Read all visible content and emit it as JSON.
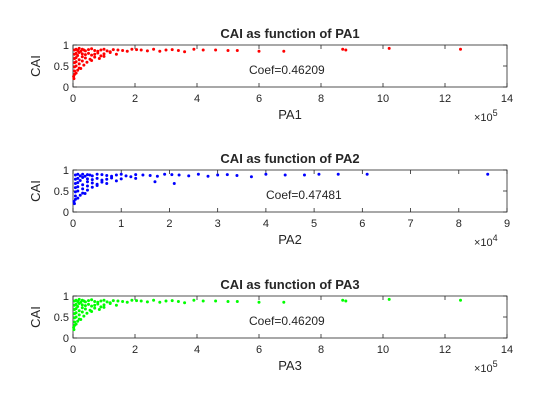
{
  "chart_data": [
    {
      "type": "scatter",
      "title": "CAI as function of PA1",
      "xlabel": "PA1",
      "ylabel": "CAI",
      "xlim": [
        0,
        14
      ],
      "ylim": [
        0,
        1
      ],
      "x_ticks": [
        "0",
        "2",
        "4",
        "6",
        "8",
        "10",
        "12",
        "14"
      ],
      "y_ticks": [
        "0",
        "0.5",
        "1"
      ],
      "x_multiplier_base": "×10",
      "x_multiplier_exp": "5",
      "annotation": "Coef=0.46209",
      "color": "#ff0000",
      "series": [
        {
          "x": [
            0.05,
            0.1,
            0.15,
            0.2,
            0.25,
            0.3,
            0.35,
            0.4,
            0.5,
            0.6,
            0.7,
            0.8,
            0.9,
            1.0,
            1.1,
            1.2,
            1.3,
            1.45,
            1.6,
            1.75,
            1.9,
            2.05,
            2.2,
            2.4,
            2.6,
            2.8,
            3.0,
            3.2,
            3.4,
            3.6,
            3.9,
            4.2,
            4.6,
            5.0,
            5.3,
            6.0,
            6.8,
            8.7,
            8.8,
            10.2,
            12.5,
            0.05,
            0.1,
            0.15,
            0.2,
            0.3,
            0.4,
            0.5,
            0.6,
            0.7,
            0.8,
            0.9,
            1.0,
            1.2,
            1.4,
            0.05,
            0.1,
            0.2,
            0.3,
            0.4,
            0.55,
            0.7,
            0.85,
            1.0,
            0.05,
            0.1,
            0.2,
            0.3,
            0.45,
            0.6,
            0.05,
            0.1,
            0.2,
            0.35,
            0.05,
            0.15,
            0.25,
            0.05,
            0.1,
            0.02,
            0.03
          ],
          "y": [
            0.88,
            0.9,
            0.87,
            0.92,
            0.85,
            0.9,
            0.88,
            0.86,
            0.89,
            0.91,
            0.87,
            0.85,
            0.88,
            0.9,
            0.86,
            0.84,
            0.89,
            0.88,
            0.87,
            0.85,
            0.9,
            0.89,
            0.88,
            0.86,
            0.9,
            0.85,
            0.88,
            0.89,
            0.87,
            0.84,
            0.9,
            0.88,
            0.88,
            0.87,
            0.87,
            0.85,
            0.85,
            0.9,
            0.88,
            0.92,
            0.9,
            0.78,
            0.8,
            0.75,
            0.82,
            0.79,
            0.77,
            0.8,
            0.76,
            0.78,
            0.81,
            0.74,
            0.79,
            0.82,
            0.78,
            0.68,
            0.7,
            0.65,
            0.72,
            0.69,
            0.66,
            0.71,
            0.68,
            0.73,
            0.58,
            0.6,
            0.55,
            0.62,
            0.59,
            0.63,
            0.48,
            0.5,
            0.45,
            0.52,
            0.38,
            0.4,
            0.44,
            0.3,
            0.33,
            0.25,
            0.2
          ]
        }
      ]
    },
    {
      "type": "scatter",
      "title": "CAI as function of PA2",
      "xlabel": "PA2",
      "ylabel": "CAI",
      "xlim": [
        0,
        9
      ],
      "ylim": [
        0,
        1
      ],
      "x_ticks": [
        "0",
        "1",
        "2",
        "3",
        "4",
        "5",
        "6",
        "7",
        "8",
        "9"
      ],
      "y_ticks": [
        "0",
        "0.5",
        "1"
      ],
      "x_multiplier_base": "×10",
      "x_multiplier_exp": "4",
      "annotation": "Coef=0.47481",
      "color": "#0000ff",
      "series": [
        {
          "x": [
            0.05,
            0.1,
            0.15,
            0.2,
            0.25,
            0.3,
            0.35,
            0.4,
            0.5,
            0.6,
            0.7,
            0.8,
            0.9,
            1.0,
            1.1,
            1.2,
            1.3,
            1.45,
            1.6,
            1.75,
            1.9,
            2.05,
            2.2,
            2.4,
            2.6,
            2.8,
            3.0,
            3.2,
            3.4,
            3.7,
            4.0,
            4.4,
            4.8,
            5.1,
            5.5,
            6.1,
            8.6,
            0.05,
            0.1,
            0.15,
            0.2,
            0.3,
            0.4,
            0.5,
            0.6,
            0.7,
            0.8,
            0.9,
            1.0,
            0.05,
            0.1,
            0.2,
            0.3,
            0.4,
            0.5,
            0.6,
            0.7,
            0.05,
            0.1,
            0.2,
            0.3,
            0.4,
            0.5,
            0.05,
            0.1,
            0.2,
            0.3,
            0.05,
            0.15,
            0.25,
            0.05,
            0.1,
            0.02,
            0.03,
            1.3,
            1.7,
            2.1
          ],
          "y": [
            0.88,
            0.9,
            0.86,
            0.9,
            0.85,
            0.89,
            0.88,
            0.86,
            0.9,
            0.89,
            0.87,
            0.85,
            0.88,
            0.9,
            0.86,
            0.84,
            0.89,
            0.88,
            0.87,
            0.85,
            0.9,
            0.89,
            0.88,
            0.86,
            0.9,
            0.85,
            0.88,
            0.89,
            0.87,
            0.84,
            0.9,
            0.88,
            0.88,
            0.9,
            0.9,
            0.9,
            0.9,
            0.78,
            0.8,
            0.75,
            0.82,
            0.79,
            0.77,
            0.8,
            0.76,
            0.78,
            0.81,
            0.74,
            0.79,
            0.68,
            0.7,
            0.65,
            0.72,
            0.69,
            0.66,
            0.71,
            0.68,
            0.58,
            0.6,
            0.55,
            0.62,
            0.59,
            0.63,
            0.48,
            0.5,
            0.45,
            0.52,
            0.38,
            0.4,
            0.44,
            0.3,
            0.33,
            0.25,
            0.2,
            0.8,
            0.72,
            0.68
          ]
        }
      ]
    },
    {
      "type": "scatter",
      "title": "CAI as function of PA3",
      "xlabel": "PA3",
      "ylabel": "CAI",
      "xlim": [
        0,
        14
      ],
      "ylim": [
        0,
        1
      ],
      "x_ticks": [
        "0",
        "2",
        "4",
        "6",
        "8",
        "10",
        "12",
        "14"
      ],
      "y_ticks": [
        "0",
        "0.5",
        "1"
      ],
      "x_multiplier_base": "×10",
      "x_multiplier_exp": "5",
      "annotation": "Coef=0.46209",
      "color": "#00ff00",
      "series": [
        {
          "x": [
            0.05,
            0.1,
            0.15,
            0.2,
            0.25,
            0.3,
            0.35,
            0.4,
            0.5,
            0.6,
            0.7,
            0.8,
            0.9,
            1.0,
            1.1,
            1.2,
            1.3,
            1.45,
            1.6,
            1.75,
            1.9,
            2.05,
            2.2,
            2.4,
            2.6,
            2.8,
            3.0,
            3.2,
            3.4,
            3.6,
            3.9,
            4.2,
            4.6,
            5.0,
            5.3,
            6.0,
            6.8,
            8.7,
            8.8,
            10.2,
            12.5,
            0.05,
            0.1,
            0.15,
            0.2,
            0.3,
            0.4,
            0.5,
            0.6,
            0.7,
            0.8,
            0.9,
            1.0,
            1.2,
            1.4,
            0.05,
            0.1,
            0.2,
            0.3,
            0.4,
            0.55,
            0.7,
            0.85,
            1.0,
            0.05,
            0.1,
            0.2,
            0.3,
            0.45,
            0.6,
            0.05,
            0.1,
            0.2,
            0.35,
            0.05,
            0.15,
            0.25,
            0.05,
            0.1,
            0.02,
            0.03
          ],
          "y": [
            0.88,
            0.9,
            0.87,
            0.92,
            0.85,
            0.9,
            0.88,
            0.86,
            0.89,
            0.91,
            0.87,
            0.85,
            0.88,
            0.9,
            0.86,
            0.84,
            0.89,
            0.88,
            0.87,
            0.85,
            0.9,
            0.89,
            0.88,
            0.86,
            0.9,
            0.85,
            0.88,
            0.89,
            0.87,
            0.84,
            0.9,
            0.88,
            0.88,
            0.87,
            0.87,
            0.85,
            0.85,
            0.9,
            0.88,
            0.92,
            0.9,
            0.78,
            0.8,
            0.75,
            0.82,
            0.79,
            0.77,
            0.8,
            0.76,
            0.78,
            0.81,
            0.74,
            0.79,
            0.82,
            0.78,
            0.68,
            0.7,
            0.65,
            0.72,
            0.69,
            0.66,
            0.71,
            0.68,
            0.73,
            0.58,
            0.6,
            0.55,
            0.62,
            0.59,
            0.63,
            0.48,
            0.5,
            0.45,
            0.52,
            0.38,
            0.4,
            0.44,
            0.3,
            0.33,
            0.25,
            0.2
          ]
        }
      ]
    }
  ]
}
